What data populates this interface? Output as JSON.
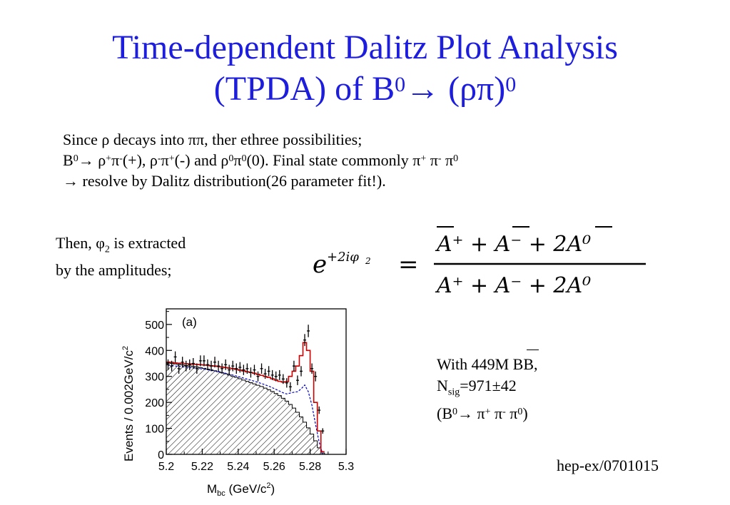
{
  "title": {
    "line1": "Time-dependent Dalitz Plot Analysis",
    "line2_prefix": "(TPDA) of B",
    "line2_sup1": "0",
    "line2_mid": "→ (ρπ)",
    "line2_sup2": "0"
  },
  "intro": {
    "line1": "Since ρ decays into ππ, ther ethree possibilities;",
    "line2_parts": {
      "a": "B",
      "a_sup": "0",
      "b": "→ ρ",
      "b_sup": "+",
      "c": "π",
      "c_sup": "-",
      "d": "(+), ρ",
      "d_sup": "-",
      "e": "π",
      "e_sup": "+",
      "f": "(-) and ρ",
      "f_sup": "0",
      "g": "π",
      "g_sup": "0",
      "h": "(0). Final state commonly π",
      "h_sup": "+",
      "i": " π",
      "i_sup": "-",
      "j": " π",
      "j_sup": "0"
    },
    "line3": "→ resolve by Dalitz distribution(26 parameter fit!)."
  },
  "then": {
    "line1_prefix": "Then, φ",
    "line1_sub": "2",
    "line1_suffix": " is extracted",
    "line2": "by the amplitudes;"
  },
  "formula": {
    "lhs_base": "e",
    "lhs_exp": "+2iφ",
    "lhs_exp_sub": "2",
    "equals": "=",
    "numerator": "A⁺ + A⁻ + 2A⁰",
    "denominator": "A⁺ + A⁻ + 2A⁰"
  },
  "stats": {
    "line1_prefix": "With 449M ",
    "line1_bb": "BB",
    "line1_suffix": ",",
    "line2_n": "N",
    "line2_sub": "sig",
    "line2_val": "=971±42",
    "line3_a": "(B",
    "line3_a_sup": "0",
    "line3_b": "→ π",
    "line3_b_sup": "+",
    "line3_c": " π",
    "line3_c_sup": "-",
    "line3_d": " π",
    "line3_d_sup": "0",
    "line3_e": ")"
  },
  "reference": "hep-ex/0701015",
  "chart_data": {
    "type": "bar",
    "panel_label": "(a)",
    "xlabel": "M",
    "xlabel_sub": "bc",
    "xlabel_suffix": " (GeV/c",
    "xlabel_sup": "2",
    "xlabel_end": ")",
    "ylabel": "Events / 0.002GeV/c",
    "ylabel_sup": "2",
    "xlim": [
      5.2,
      5.3
    ],
    "ylim": [
      0,
      560
    ],
    "xticks": [
      "5.2",
      "5.22",
      "5.24",
      "5.26",
      "5.28",
      "5.3"
    ],
    "yticks": [
      "0",
      "100",
      "200",
      "300",
      "400",
      "500"
    ],
    "x": [
      5.201,
      5.203,
      5.205,
      5.207,
      5.209,
      5.211,
      5.213,
      5.215,
      5.217,
      5.219,
      5.221,
      5.223,
      5.225,
      5.227,
      5.229,
      5.231,
      5.233,
      5.235,
      5.237,
      5.239,
      5.241,
      5.243,
      5.245,
      5.247,
      5.249,
      5.251,
      5.253,
      5.255,
      5.257,
      5.259,
      5.261,
      5.263,
      5.265,
      5.267,
      5.269,
      5.271,
      5.273,
      5.275,
      5.277,
      5.279,
      5.281,
      5.283,
      5.285,
      5.287
    ],
    "data_points": [
      345,
      340,
      375,
      330,
      355,
      340,
      345,
      350,
      330,
      360,
      360,
      345,
      340,
      355,
      340,
      330,
      345,
      325,
      340,
      330,
      335,
      325,
      330,
      315,
      325,
      300,
      330,
      310,
      320,
      305,
      300,
      305,
      290,
      275,
      260,
      340,
      285,
      320,
      440,
      475,
      330,
      300,
      170,
      90
    ],
    "total_fit": [
      355,
      354,
      352,
      351,
      350,
      349,
      348,
      347,
      346,
      345,
      344,
      343,
      341,
      340,
      338,
      336,
      334,
      332,
      330,
      327,
      324,
      321,
      318,
      315,
      312,
      308,
      304,
      300,
      296,
      291,
      286,
      281,
      278,
      280,
      300,
      320,
      340,
      380,
      430,
      400,
      320,
      200,
      90,
      10
    ],
    "background": [
      352,
      350,
      348,
      346,
      344,
      342,
      340,
      338,
      336,
      334,
      331,
      328,
      325,
      322,
      318,
      314,
      310,
      305,
      300,
      296,
      291,
      286,
      281,
      276,
      271,
      266,
      261,
      255,
      249,
      242,
      234,
      226,
      216,
      205,
      192,
      178,
      162,
      144,
      124,
      102,
      78,
      52,
      25,
      5
    ],
    "fit_color": "#cc0000",
    "component_color": "#0000cc",
    "background_hatch_color": "#000000"
  }
}
